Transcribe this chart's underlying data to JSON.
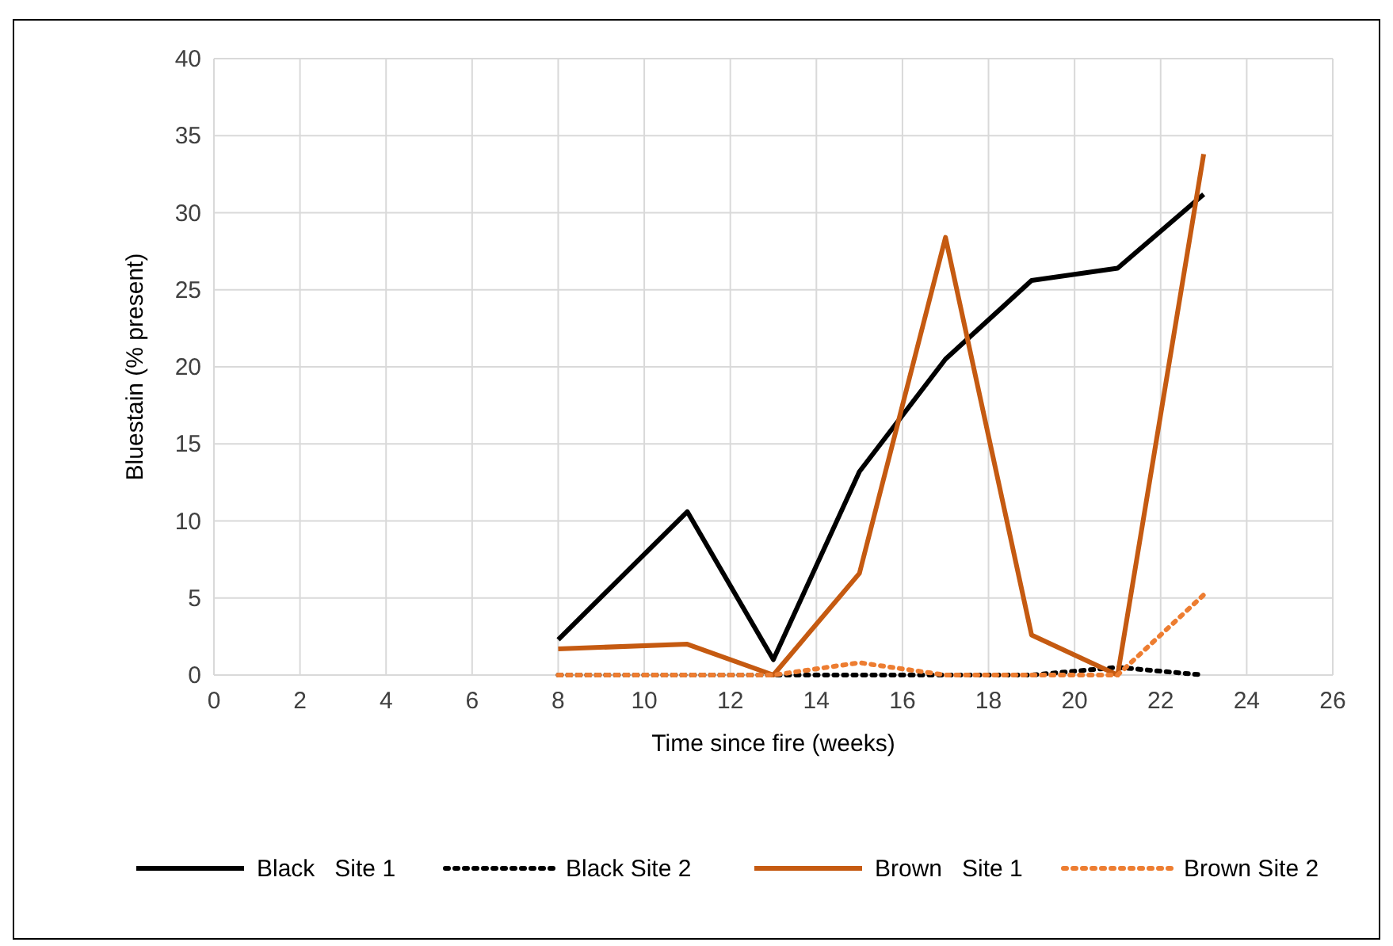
{
  "chart_data": {
    "type": "line",
    "xlabel": "Time since fire (weeks)",
    "ylabel": "Bluestain (% present)",
    "x": [
      8,
      11,
      13,
      15,
      17,
      19,
      21,
      23
    ],
    "series": [
      {
        "name": "Black   Site 1",
        "color": "#000000",
        "line_style": "solid",
        "values": [
          2.3,
          10.6,
          1.0,
          13.2,
          20.5,
          25.6,
          26.4,
          31.2
        ]
      },
      {
        "name": "Black Site 2",
        "color": "#000000",
        "line_style": "dotted",
        "values": [
          0,
          0,
          0,
          0,
          0,
          0,
          0.5,
          0
        ]
      },
      {
        "name": "Brown   Site 1",
        "color": "#c55a11",
        "line_style": "solid",
        "values": [
          1.7,
          2.0,
          0,
          6.6,
          28.4,
          2.6,
          0,
          33.8
        ]
      },
      {
        "name": "Brown Site 2",
        "color": "#ed7d31",
        "line_style": "dotted",
        "values": [
          0,
          0,
          0,
          0.8,
          0,
          0,
          0,
          5.2
        ]
      }
    ],
    "xlim": [
      0,
      26
    ],
    "xticks": [
      0,
      2,
      4,
      6,
      8,
      10,
      12,
      14,
      16,
      18,
      20,
      22,
      24,
      26
    ],
    "ylim": [
      0,
      40
    ],
    "yticks": [
      0,
      5,
      10,
      15,
      20,
      25,
      30,
      35,
      40
    ],
    "grid": true,
    "legend": "bottom",
    "marker": "none"
  }
}
